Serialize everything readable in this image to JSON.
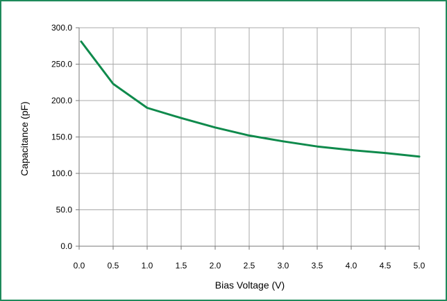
{
  "chart_data": {
    "type": "line",
    "title": "",
    "xlabel": "Bias Voltage (V)",
    "ylabel": "Capacitance (pF)",
    "xlim": [
      0.0,
      5.0
    ],
    "ylim": [
      0.0,
      300.0
    ],
    "x_ticks": [
      "0.0",
      "0.5",
      "1.0",
      "1.5",
      "2.0",
      "2.5",
      "3.0",
      "3.5",
      "4.0",
      "4.5",
      "5.0"
    ],
    "y_ticks": [
      "0.0",
      "50.0",
      "100.0",
      "150.0",
      "200.0",
      "250.0",
      "300.0"
    ],
    "grid": true,
    "legend": "none",
    "series": [
      {
        "color": "#0f8a4c",
        "x": [
          0.03,
          0.5,
          1.0,
          1.5,
          2.0,
          2.5,
          3.0,
          3.5,
          4.0,
          4.5,
          5.0
        ],
        "y": [
          281,
          223,
          190,
          176,
          163,
          152,
          144,
          137,
          132,
          128,
          123
        ]
      }
    ],
    "frame_color": "#1f8a5b"
  }
}
